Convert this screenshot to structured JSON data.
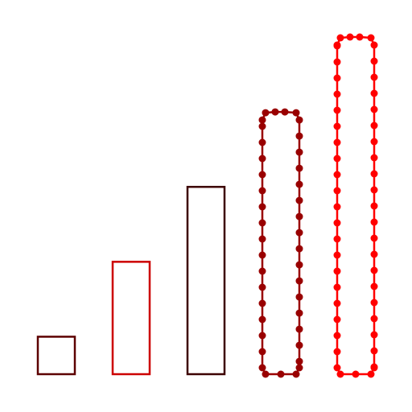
{
  "chart_data": {
    "type": "bar",
    "title": "",
    "xlabel": "",
    "ylabel": "",
    "axes_visible": false,
    "grid": false,
    "legend": "none",
    "categories": [
      "",
      "",
      "",
      "",
      ""
    ],
    "values": [
      1,
      3,
      5,
      7,
      9
    ],
    "ylim": [
      0,
      9
    ],
    "bars": [
      {
        "value": 1,
        "color": "#5c0000",
        "style": "outline"
      },
      {
        "value": 3,
        "color": "#cc0000",
        "style": "outline"
      },
      {
        "value": 5,
        "color": "#3d0000",
        "style": "outline"
      },
      {
        "value": 7,
        "color": "#990000",
        "style": "outline-with-dot-markers"
      },
      {
        "value": 9,
        "color": "#ff0000",
        "style": "outline-with-dot-markers"
      }
    ]
  }
}
